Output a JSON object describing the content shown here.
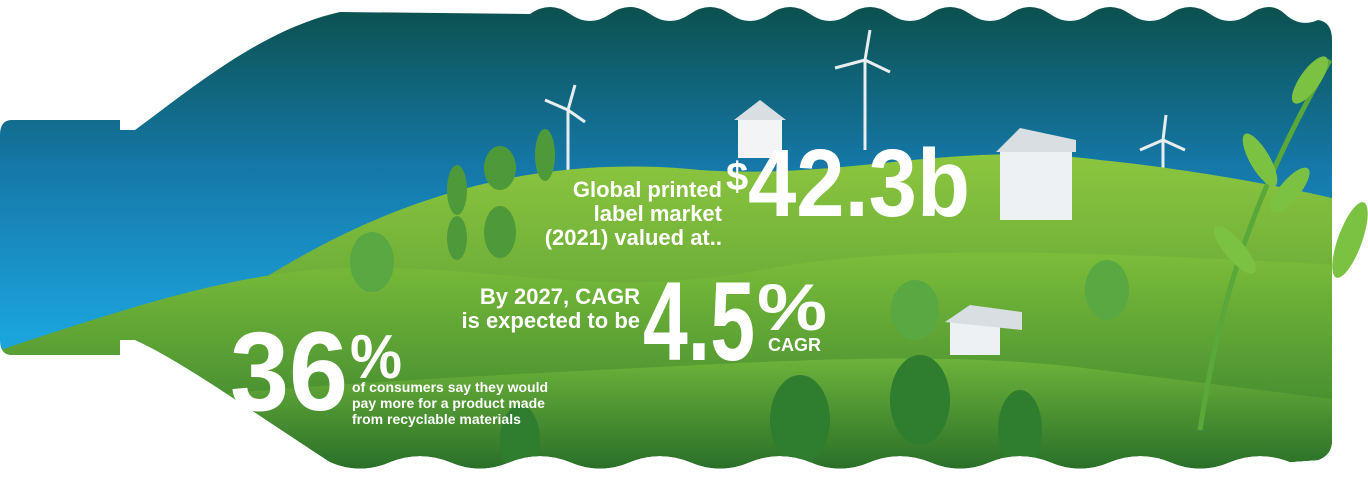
{
  "headline": {
    "lines": [
      "Global printed",
      "label market",
      "(2021) valued at.."
    ],
    "currency": "$",
    "value": "42.3b"
  },
  "cagr": {
    "lines": [
      "By 2027, CAGR",
      "is expected to be"
    ],
    "value": "4.5",
    "unit": "%",
    "suffix": "CAGR"
  },
  "consumers": {
    "value": "36",
    "unit": "%",
    "lines": [
      "of consumers say they would",
      "pay more for a product made",
      "from recyclable materials"
    ]
  }
}
